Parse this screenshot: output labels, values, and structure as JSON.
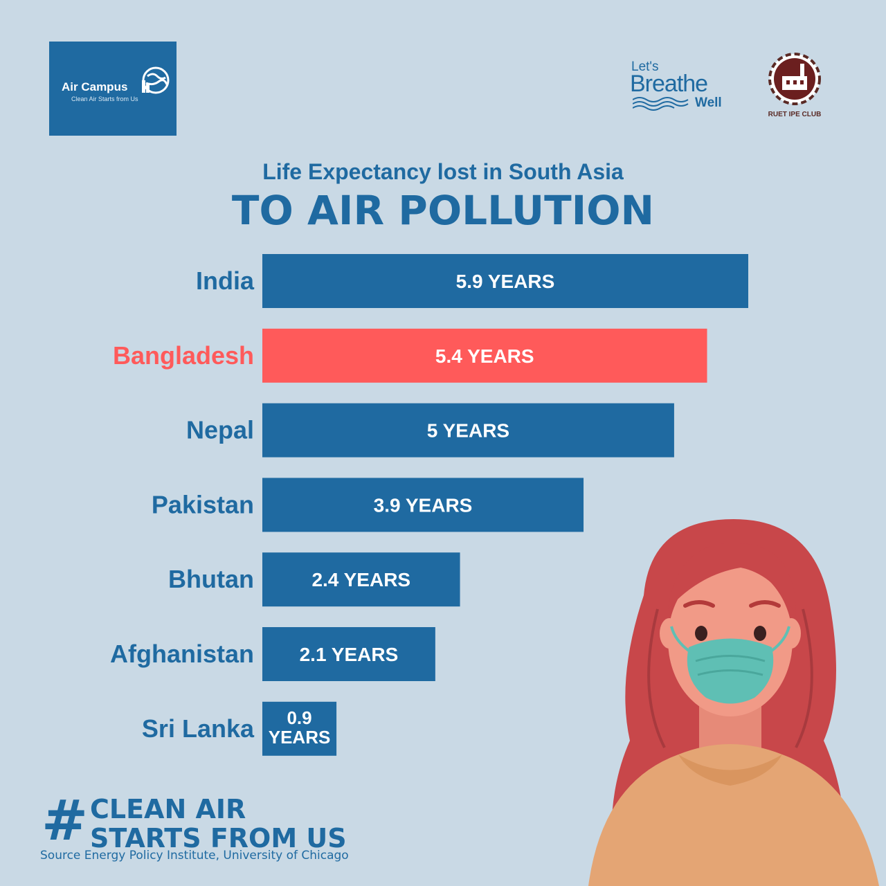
{
  "branding": {
    "air_campus_name": "Air Campus",
    "air_campus_tagline": "Clean Air Starts from Us",
    "breathe_lets": "Let's",
    "breathe_word": "Breathe",
    "breathe_well": "Well",
    "ruet_label": "RUET IPE CLUB"
  },
  "colors": {
    "background": "#c9d9e5",
    "bar": "#1f6aa1",
    "highlight": "#ff5a5a"
  },
  "footer": {
    "hashtag_symbol": "#",
    "hashtag_line1": "CLEAN AIR",
    "hashtag_line2": "STARTS FROM US",
    "source": "Source Energy Policy Institute, University of Chicago"
  },
  "chart_data": {
    "type": "bar",
    "orientation": "horizontal",
    "subtitle": "Life Expectancy lost in South Asia",
    "title": "TO AIR POLLUTION",
    "unit": "YEARS",
    "categories": [
      "India",
      "Bangladesh",
      "Nepal",
      "Pakistan",
      "Bhutan",
      "Afghanistan",
      "Sri Lanka"
    ],
    "values": [
      5.9,
      5.4,
      5,
      3.9,
      2.4,
      2.1,
      0.9
    ],
    "data_labels": [
      "5.9 YEARS",
      "5.4 YEARS",
      "5 YEARS",
      "3.9 YEARS",
      "2.4 YEARS",
      "2.1 YEARS",
      "0.9 YEARS"
    ],
    "highlight_category": "Bangladesh",
    "grid": false,
    "legend": "none"
  }
}
